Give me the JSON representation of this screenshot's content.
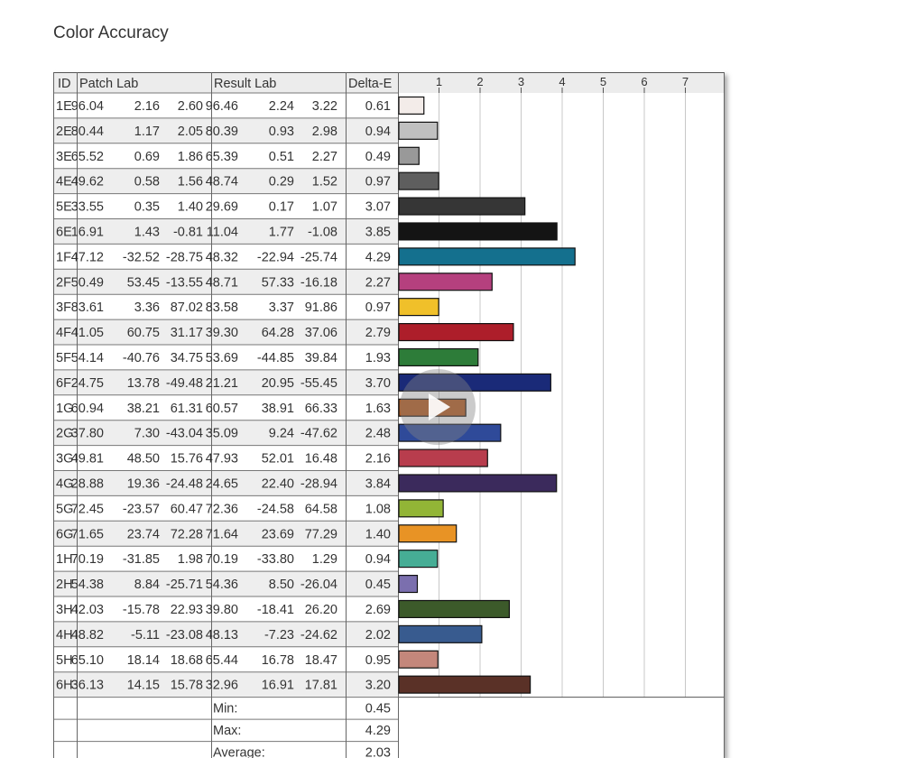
{
  "title": "Color Accuracy",
  "table": {
    "headers": {
      "id": "ID",
      "patch": "Patch Lab",
      "result": "Result Lab",
      "delta": "Delta-E"
    },
    "summary": [
      {
        "label": "Min:",
        "value": "0.45"
      },
      {
        "label": "Max:",
        "value": "4.29"
      },
      {
        "label": "Average:",
        "value": "2.03"
      }
    ]
  },
  "chart_data": {
    "type": "bar",
    "title": "Color Accuracy",
    "xlabel": "",
    "ylabel": "",
    "x_ticks": [
      "1",
      "2",
      "3",
      "4",
      "5",
      "6",
      "7"
    ],
    "xlim": [
      0,
      8
    ],
    "grid": true,
    "categories": [
      "1E",
      "2E",
      "3E",
      "4E",
      "5E",
      "6E",
      "1F",
      "2F",
      "3F",
      "4F",
      "5F",
      "6F",
      "1G",
      "2G",
      "3G",
      "4G",
      "5G",
      "6G",
      "1H",
      "2H",
      "3H",
      "4H",
      "5H",
      "6H"
    ],
    "patch_lab": [
      [
        "96.04",
        "2.16",
        "2.60"
      ],
      [
        "80.44",
        "1.17",
        "2.05"
      ],
      [
        "65.52",
        "0.69",
        "1.86"
      ],
      [
        "49.62",
        "0.58",
        "1.56"
      ],
      [
        "33.55",
        "0.35",
        "1.40"
      ],
      [
        "16.91",
        "1.43",
        "-0.81"
      ],
      [
        "47.12",
        "-32.52",
        "-28.75"
      ],
      [
        "50.49",
        "53.45",
        "-13.55"
      ],
      [
        "83.61",
        "3.36",
        "87.02"
      ],
      [
        "41.05",
        "60.75",
        "31.17"
      ],
      [
        "54.14",
        "-40.76",
        "34.75"
      ],
      [
        "24.75",
        "13.78",
        "-49.48"
      ],
      [
        "60.94",
        "38.21",
        "61.31"
      ],
      [
        "37.80",
        "7.30",
        "-43.04"
      ],
      [
        "49.81",
        "48.50",
        "15.76"
      ],
      [
        "28.88",
        "19.36",
        "-24.48"
      ],
      [
        "72.45",
        "-23.57",
        "60.47"
      ],
      [
        "71.65",
        "23.74",
        "72.28"
      ],
      [
        "70.19",
        "-31.85",
        "1.98"
      ],
      [
        "54.38",
        "8.84",
        "-25.71"
      ],
      [
        "42.03",
        "-15.78",
        "22.93"
      ],
      [
        "48.82",
        "-5.11",
        "-23.08"
      ],
      [
        "65.10",
        "18.14",
        "18.68"
      ],
      [
        "36.13",
        "14.15",
        "15.78"
      ]
    ],
    "result_lab": [
      [
        "96.46",
        "2.24",
        "3.22"
      ],
      [
        "80.39",
        "0.93",
        "2.98"
      ],
      [
        "65.39",
        "0.51",
        "2.27"
      ],
      [
        "48.74",
        "0.29",
        "1.52"
      ],
      [
        "29.69",
        "0.17",
        "1.07"
      ],
      [
        "11.04",
        "1.77",
        "-1.08"
      ],
      [
        "48.32",
        "-22.94",
        "-25.74"
      ],
      [
        "48.71",
        "57.33",
        "-16.18"
      ],
      [
        "83.58",
        "3.37",
        "91.86"
      ],
      [
        "39.30",
        "64.28",
        "37.06"
      ],
      [
        "53.69",
        "-44.85",
        "39.84"
      ],
      [
        "21.21",
        "20.95",
        "-55.45"
      ],
      [
        "60.57",
        "38.91",
        "66.33"
      ],
      [
        "35.09",
        "9.24",
        "-47.62"
      ],
      [
        "47.93",
        "52.01",
        "16.48"
      ],
      [
        "24.65",
        "22.40",
        "-28.94"
      ],
      [
        "72.36",
        "-24.58",
        "64.58"
      ],
      [
        "71.64",
        "23.69",
        "77.29"
      ],
      [
        "70.19",
        "-33.80",
        "1.29"
      ],
      [
        "54.36",
        "8.50",
        "-26.04"
      ],
      [
        "39.80",
        "-18.41",
        "26.20"
      ],
      [
        "48.13",
        "-7.23",
        "-24.62"
      ],
      [
        "65.44",
        "16.78",
        "18.47"
      ],
      [
        "32.96",
        "16.91",
        "17.81"
      ]
    ],
    "values": [
      0.61,
      0.94,
      0.49,
      0.97,
      3.07,
      3.85,
      4.29,
      2.27,
      0.97,
      2.79,
      1.93,
      3.7,
      1.63,
      2.48,
      2.16,
      3.84,
      1.08,
      1.4,
      0.94,
      0.45,
      2.69,
      2.02,
      0.95,
      3.2
    ],
    "value_labels": [
      "0.61",
      "0.94",
      "0.49",
      "0.97",
      "3.07",
      "3.85",
      "4.29",
      "2.27",
      "0.97",
      "2.79",
      "1.93",
      "3.70",
      "1.63",
      "2.48",
      "2.16",
      "3.84",
      "1.08",
      "1.40",
      "0.94",
      "0.45",
      "2.69",
      "2.02",
      "0.95",
      "3.20"
    ],
    "colors": [
      "#f3ece9",
      "#c0c0c0",
      "#999999",
      "#5e5e5e",
      "#363636",
      "#141414",
      "#14708e",
      "#b5407e",
      "#f0c02a",
      "#ad1e2a",
      "#2d7c39",
      "#1a2a78",
      "#b55a1e",
      "#2f4a99",
      "#b83d4d",
      "#3b2a5c",
      "#92b536",
      "#e89325",
      "#46ad95",
      "#7b6fae",
      "#3c5a2a",
      "#385b8f",
      "#c4877b",
      "#5a3127"
    ]
  }
}
